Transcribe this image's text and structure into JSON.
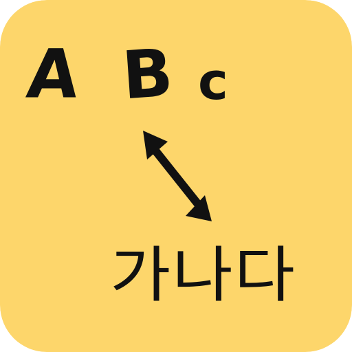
{
  "icon": {
    "background_color": "#FDD66B",
    "ink_color": "#111111",
    "letters": {
      "a": "A",
      "b": "B",
      "c": "c"
    },
    "korean_text": "가나다",
    "arrow": "double-headed-arrow-icon"
  }
}
